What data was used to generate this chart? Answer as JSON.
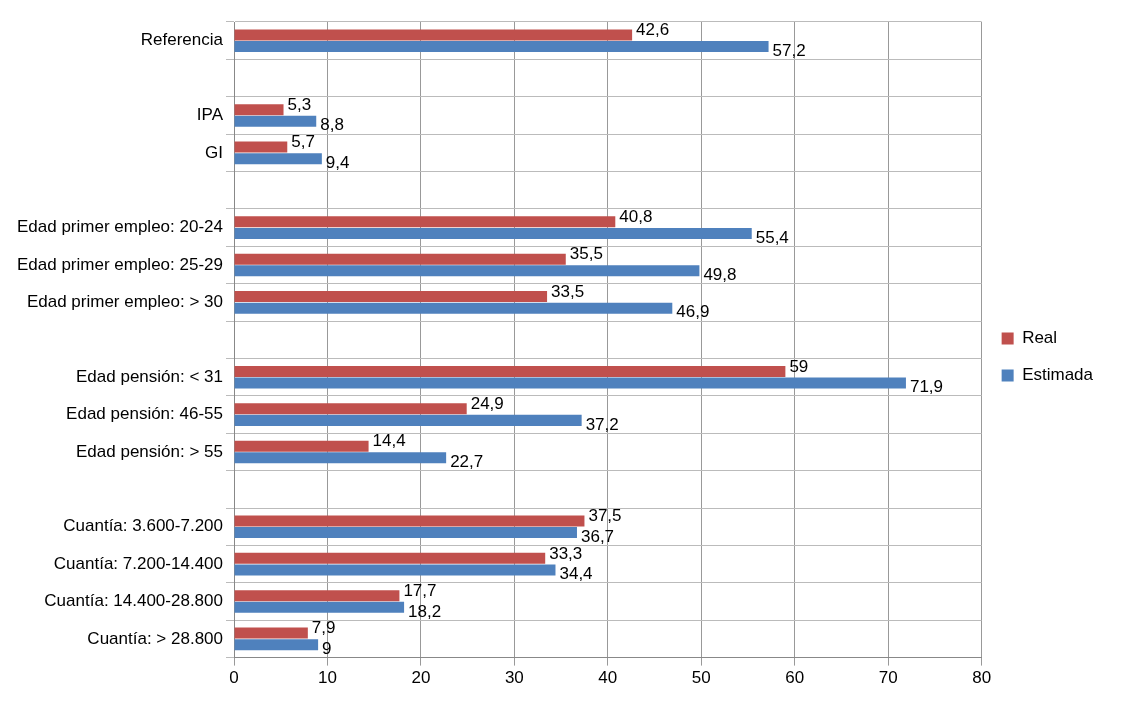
{
  "chart_data": {
    "type": "bar",
    "orientation": "horizontal",
    "categories": [
      "Referencia",
      null,
      "IPA",
      "GI",
      null,
      "Edad primer empleo: 20-24",
      "Edad primer empleo: 25-29",
      "Edad primer empleo: > 30",
      null,
      "Edad pensión: < 31",
      "Edad pensión: 46-55",
      "Edad pensión: > 55",
      null,
      "Cuantía: 3.600-7.200",
      "Cuantía: 7.200-14.400",
      "Cuantía: 14.400-28.800",
      "Cuantía: > 28.800"
    ],
    "series": [
      {
        "name": "Real",
        "color": "#c0504d",
        "values": [
          42.6,
          null,
          5.3,
          5.7,
          null,
          40.8,
          35.5,
          33.5,
          null,
          59,
          24.9,
          14.4,
          null,
          37.5,
          33.3,
          17.7,
          7.9
        ],
        "value_labels": [
          "42,6",
          null,
          "5,3",
          "5,7",
          null,
          "40,8",
          "35,5",
          "33,5",
          null,
          "59",
          "24,9",
          "14,4",
          null,
          "37,5",
          "33,3",
          "17,7",
          "7,9"
        ]
      },
      {
        "name": "Estimada",
        "color": "#4f81bd",
        "values": [
          57.2,
          null,
          8.8,
          9.4,
          null,
          55.4,
          49.8,
          46.9,
          null,
          71.9,
          37.2,
          22.7,
          null,
          36.7,
          34.4,
          18.2,
          9
        ],
        "value_labels": [
          "57,2",
          null,
          "8,8",
          "9,4",
          null,
          "55,4",
          "49,8",
          "46,9",
          null,
          "71,9",
          "37,2",
          "22,7",
          null,
          "36,7",
          "34,4",
          "18,2",
          "9"
        ]
      }
    ],
    "xlim": [
      0,
      80
    ],
    "xticks": [
      0,
      10,
      20,
      30,
      40,
      50,
      60,
      70,
      80
    ],
    "grid": true,
    "legend": "right"
  }
}
